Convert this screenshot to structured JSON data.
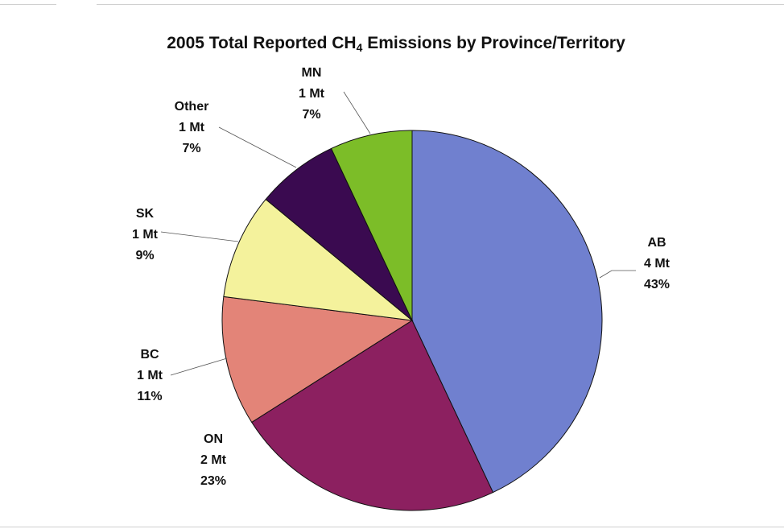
{
  "chart_data": {
    "type": "pie",
    "title_main": "2005 Total Reported CH",
    "title_sub": "4",
    "title_rest": " Emissions by Province/Territory",
    "start_angle_deg": 0,
    "direction": "clockwise",
    "slices": [
      {
        "name": "AB",
        "amount": "4 Mt",
        "percent_label": "43%",
        "value": 43,
        "color": "#7080cf"
      },
      {
        "name": "ON",
        "amount": "2 Mt",
        "percent_label": "23%",
        "value": 23,
        "color": "#8c2060"
      },
      {
        "name": "BC",
        "amount": "1 Mt",
        "percent_label": "11%",
        "value": 11,
        "color": "#e38478"
      },
      {
        "name": "SK",
        "amount": "1 Mt",
        "percent_label": "9%",
        "value": 9,
        "color": "#f4f29c"
      },
      {
        "name": "Other",
        "amount": "1 Mt",
        "percent_label": "7%",
        "value": 7,
        "color": "#3a0a50"
      },
      {
        "name": "MN",
        "amount": "1 Mt",
        "percent_label": "7%",
        "value": 7,
        "color": "#7cbd28"
      }
    ]
  }
}
